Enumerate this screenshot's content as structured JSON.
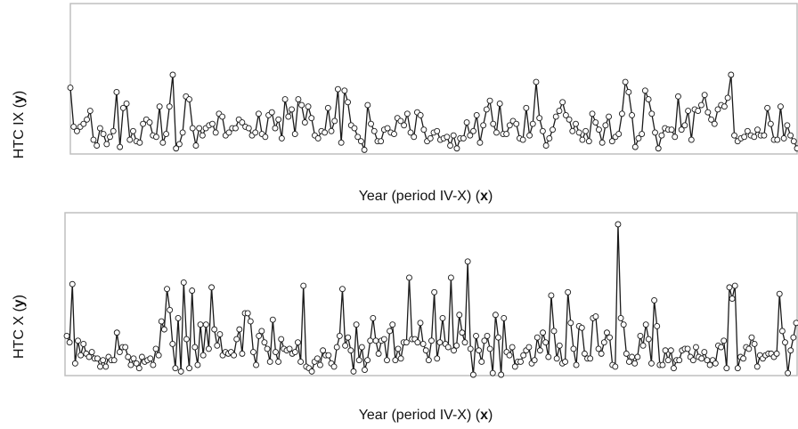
{
  "chart_data": [
    {
      "type": "line",
      "xlabel": "Year (period IV-X) (",
      "xlabel_symbol": "x",
      "xlabel_end": ")",
      "ylabel": "HTC IX (",
      "ylabel_symbol": "y",
      "ylabel_end": ")",
      "ylim": [
        0,
        100
      ],
      "grid": false,
      "marker": "open-circle",
      "values": [
        44,
        17,
        14,
        17,
        19,
        22,
        28,
        8,
        4,
        16,
        12,
        5,
        10,
        14,
        41,
        3,
        30,
        33,
        8,
        14,
        7,
        6,
        19,
        22,
        20,
        11,
        10,
        31,
        6,
        12,
        31,
        53,
        2,
        5,
        13,
        38,
        36,
        16,
        4,
        16,
        11,
        16,
        18,
        19,
        13,
        26,
        24,
        11,
        13,
        16,
        16,
        22,
        20,
        17,
        16,
        11,
        13,
        26,
        12,
        10,
        25,
        27,
        16,
        22,
        9,
        36,
        24,
        29,
        12,
        36,
        32,
        20,
        31,
        23,
        11,
        9,
        14,
        13,
        30,
        14,
        21,
        43,
        6,
        42,
        34,
        18,
        16,
        10,
        7,
        1,
        32,
        19,
        14,
        7,
        7,
        15,
        16,
        13,
        12,
        23,
        21,
        18,
        26,
        13,
        10,
        27,
        25,
        15,
        7,
        9,
        13,
        14,
        8,
        9,
        10,
        4,
        11,
        2,
        9,
        9,
        20,
        11,
        14,
        25,
        6,
        18,
        29,
        35,
        19,
        13,
        33,
        12,
        12,
        18,
        21,
        19,
        9,
        8,
        30,
        11,
        19,
        48,
        23,
        14,
        4,
        9,
        15,
        24,
        28,
        34,
        25,
        22,
        14,
        19,
        13,
        8,
        14,
        7,
        26,
        20,
        15,
        6,
        18,
        24,
        7,
        10,
        12,
        26,
        48,
        41,
        25,
        3,
        9,
        12,
        42,
        36,
        26,
        13,
        2,
        11,
        16,
        15,
        15,
        10,
        38,
        15,
        18,
        28,
        8,
        29,
        28,
        32,
        39,
        27,
        22,
        19,
        29,
        32,
        31,
        37,
        53,
        11,
        7,
        9,
        10,
        14,
        11,
        10,
        15,
        11,
        11,
        30,
        19,
        8,
        8,
        31,
        9,
        18,
        11,
        7,
        2
      ],
      "yticks_shown": false
    },
    {
      "type": "line",
      "xlabel": "Year (period IV-X) (",
      "xlabel_symbol": "x",
      "xlabel_end": ")",
      "ylabel": "HTC X (",
      "ylabel_symbol": "y",
      "ylabel_end": ")",
      "ylim": [
        0,
        100
      ],
      "grid": false,
      "marker": "open-circle",
      "values": [
        24,
        20,
        56,
        7,
        21,
        12,
        19,
        13,
        11,
        14,
        10,
        10,
        5,
        9,
        5,
        11,
        9,
        9,
        26,
        14,
        17,
        17,
        11,
        6,
        10,
        7,
        4,
        11,
        8,
        9,
        10,
        6,
        16,
        12,
        33,
        28,
        53,
        40,
        19,
        4,
        35,
        2,
        57,
        22,
        4,
        52,
        17,
        6,
        31,
        12,
        31,
        16,
        54,
        28,
        18,
        25,
        12,
        14,
        13,
        14,
        12,
        22,
        28,
        13,
        38,
        38,
        33,
        14,
        6,
        24,
        27,
        20,
        16,
        8,
        34,
        14,
        8,
        22,
        16,
        15,
        16,
        13,
        14,
        20,
        8,
        55,
        5,
        4,
        2,
        8,
        10,
        6,
        15,
        12,
        12,
        7,
        5,
        17,
        24,
        53,
        18,
        23,
        15,
        2,
        31,
        9,
        17,
        3,
        9,
        21,
        35,
        21,
        13,
        21,
        22,
        9,
        27,
        31,
        9,
        16,
        10,
        20,
        20,
        60,
        22,
        22,
        20,
        32,
        19,
        15,
        9,
        21,
        51,
        10,
        20,
        35,
        19,
        17,
        60,
        15,
        18,
        37,
        26,
        20,
        70,
        16,
        0,
        24,
        15,
        8,
        21,
        24,
        16,
        1,
        37,
        23,
        0,
        35,
        14,
        12,
        17,
        5,
        8,
        8,
        12,
        15,
        17,
        7,
        9,
        23,
        15,
        26,
        20,
        11,
        49,
        27,
        10,
        18,
        7,
        8,
        51,
        32,
        16,
        6,
        30,
        29,
        13,
        10,
        10,
        35,
        36,
        16,
        13,
        20,
        26,
        23,
        6,
        5,
        93,
        35,
        31,
        13,
        8,
        11,
        7,
        11,
        24,
        18,
        31,
        22,
        7,
        46,
        30,
        6,
        6,
        15,
        9,
        15,
        4,
        9,
        9,
        15,
        16,
        16,
        11,
        9,
        17,
        11,
        10,
        14,
        9,
        6,
        9,
        7,
        18,
        17,
        21,
        4,
        54,
        47,
        55,
        4,
        11,
        10,
        17,
        16,
        23,
        19,
        5,
        12,
        10,
        12,
        13,
        13,
        11,
        13,
        50,
        27,
        20,
        1,
        15,
        23,
        32
      ]
    }
  ]
}
